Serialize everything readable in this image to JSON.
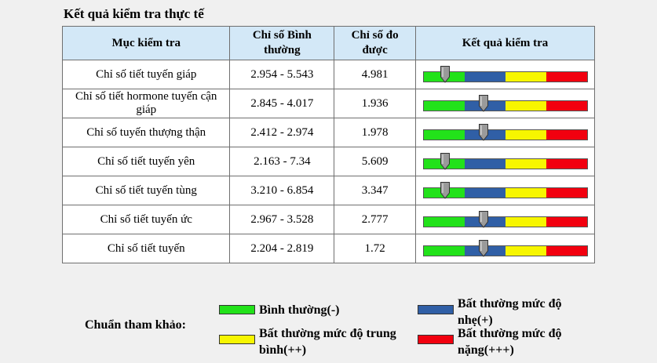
{
  "title": "Kết quả kiểm tra thực tế",
  "table": {
    "headers": [
      "Mục kiểm tra",
      "Chỉ số Bình thường",
      "Chỉ số đo được",
      "Kết quả kiểm tra"
    ],
    "rows": [
      {
        "item": "Chỉ số tiết tuyến giáp",
        "normal": "2.954 - 5.543",
        "measured": "4.981",
        "level": 0.13
      },
      {
        "item": "Chỉ số tiết hormone tuyến cận giáp",
        "normal": "2.845 - 4.017",
        "measured": "1.936",
        "level": 0.37
      },
      {
        "item": "Chỉ số tuyến thượng thận",
        "normal": "2.412 - 2.974",
        "measured": "1.978",
        "level": 0.37
      },
      {
        "item": "Chỉ số tiết tuyến yên",
        "normal": "2.163 - 7.34",
        "measured": "5.609",
        "level": 0.13
      },
      {
        "item": "Chỉ số tiết tuyến tùng",
        "normal": "3.210 - 6.854",
        "measured": "3.347",
        "level": 0.13
      },
      {
        "item": "Chỉ số tiết tuyến ức",
        "normal": "2.967 - 3.528",
        "measured": "2.777",
        "level": 0.37
      },
      {
        "item": "Chỉ số tiết tuyến",
        "normal": "2.204 - 2.819",
        "measured": "1.72",
        "level": 0.37
      }
    ]
  },
  "legend": {
    "label": "Chuẩn tham khảo:",
    "items": [
      {
        "text": "Bình thường(-)",
        "color": "#22e21a"
      },
      {
        "text": "Bất thường mức độ nhẹ(+)",
        "color": "#305fa6"
      },
      {
        "text": "Bất thường mức độ trung bình(++)",
        "color": "#f7f600"
      },
      {
        "text": "Bất thường mức độ nặng(+++)",
        "color": "#f2000f"
      }
    ]
  }
}
